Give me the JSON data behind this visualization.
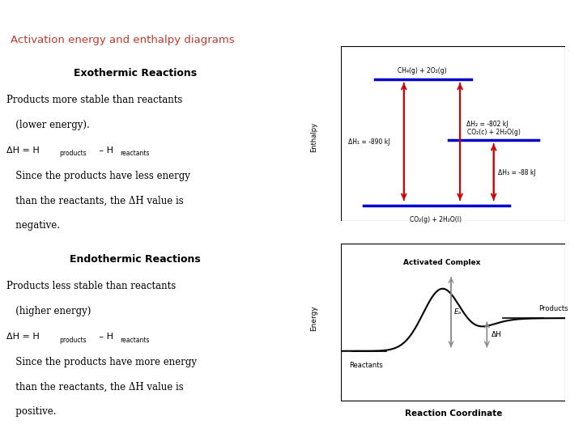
{
  "slide_bg": "#ffffff",
  "header_bg": "#8c9eab",
  "title_text": "Activation energy and enthalpy diagrams",
  "title_color": "#c0392b",
  "exo_heading": "Exothermic Reactions",
  "exo_line1": "Products more stable than reactants",
  "exo_line2": "   (lower energy).",
  "exo_dH_main": "ΔH = H",
  "exo_sub1": "products",
  "exo_dH_mid": " – H",
  "exo_sub2": "reactants",
  "exo_since1": "   Since the products have less energy",
  "exo_since2": "   than the reactants, the ΔH value is",
  "exo_since3": "   negative.",
  "endo_heading": "Endothermic Reactions",
  "endo_line1": "Products less stable than reactants",
  "endo_line2": "   (higher energy)",
  "endo_dH_main": "ΔH = H",
  "endo_sub1": "products",
  "endo_dH_mid": " – H",
  "endo_sub2": "reactants",
  "endo_since1": "   Since the products have more energy",
  "endo_since2": "   than the reactants, the ΔH value is",
  "endo_since3": "   positive.",
  "d1_label_top": "CH₄(g) + 2O₂(g)",
  "d1_label_mid": "CO₂(c) + 2H₂O(g)",
  "d1_label_bot": "CO₂(g) + 2H₂O(l)",
  "d1_arrow1_label": "ΔH₁ = -890 kJ",
  "d1_arrow2_label": "ΔH₂ = -802 kJ",
  "d1_arrow3_label": "ΔH₃ = -88 kJ",
  "d1_ylabel": "Enthalpy",
  "d1_line_color": "#0000cc",
  "d1_arrow_color": "#cc0000",
  "d2_ylabel": "Energy",
  "d2_xlabel": "Reaction Coordinate",
  "d2_label_ac": "Activated Complex",
  "d2_label_reactants": "Reactants",
  "d2_label_products": "Products",
  "d2_label_Ea": "Eₐ",
  "d2_label_dH": "ΔH",
  "d2_curve_color": "#000000",
  "d2_arrow_color": "#888888"
}
